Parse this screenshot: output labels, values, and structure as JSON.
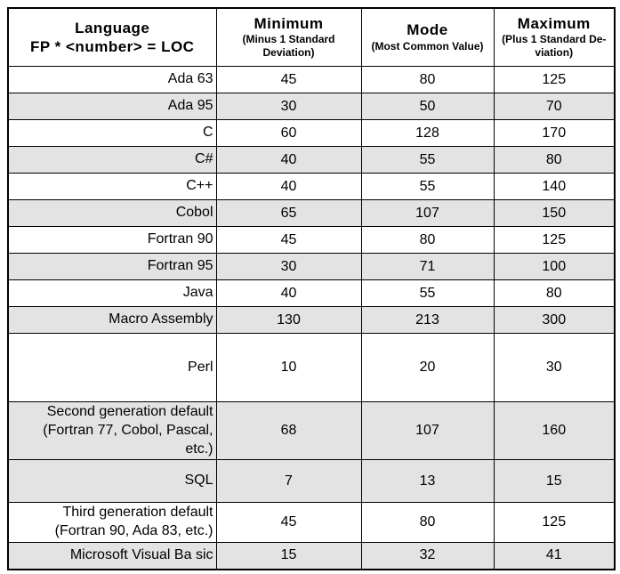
{
  "table": {
    "language_header": {
      "line1": "Language",
      "line2": "FP * <number> = LOC"
    },
    "columns": [
      {
        "title": "Minimum",
        "subtitle": "(Minus 1 Standard Deviation)"
      },
      {
        "title": "Mode",
        "subtitle": "(Most Common Value)"
      },
      {
        "title": "Maximum",
        "subtitle": "(Plus 1 Standard De-viation)"
      }
    ],
    "rows": [
      {
        "language": "Ada 63",
        "minimum": "45",
        "mode": "80",
        "maximum": "125",
        "shaded": false
      },
      {
        "language": "Ada 95",
        "minimum": "30",
        "mode": "50",
        "maximum": "70",
        "shaded": true
      },
      {
        "language": "C",
        "minimum": "60",
        "mode": "128",
        "maximum": "170",
        "shaded": false
      },
      {
        "language": "C#",
        "minimum": "40",
        "mode": "55",
        "maximum": "80",
        "shaded": true
      },
      {
        "language": "C++",
        "minimum": "40",
        "mode": "55",
        "maximum": "140",
        "shaded": false
      },
      {
        "language": "Cobol",
        "minimum": "65",
        "mode": "107",
        "maximum": "150",
        "shaded": true
      },
      {
        "language": "Fortran 90",
        "minimum": "45",
        "mode": "80",
        "maximum": "125",
        "shaded": false
      },
      {
        "language": "Fortran 95",
        "minimum": "30",
        "mode": "71",
        "maximum": "100",
        "shaded": true
      },
      {
        "language": "Java",
        "minimum": "40",
        "mode": "55",
        "maximum": "80",
        "shaded": false
      },
      {
        "language": "Macro Assembly",
        "minimum": "130",
        "mode": "213",
        "maximum": "300",
        "shaded": true
      },
      {
        "language": "Perl",
        "minimum": "10",
        "mode": "20",
        "maximum": "30",
        "shaded": false
      },
      {
        "language": "Second generation default (Fortran 77, Cobol, Pascal, etc.)",
        "minimum": "68",
        "mode": "107",
        "maximum": "160",
        "shaded": true
      },
      {
        "language": "SQL",
        "minimum": "7",
        "mode": "13",
        "maximum": "15",
        "shaded": true
      },
      {
        "language": "Third generation default (Fortran 90, Ada 83, etc.)",
        "minimum": "45",
        "mode": "80",
        "maximum": "125",
        "shaded": false
      },
      {
        "language": "Microsoft Visual Ba sic",
        "minimum": "15",
        "mode": "32",
        "maximum": "41",
        "shaded": true
      }
    ]
  },
  "colors": {
    "row_shaded": "#e3e3e3",
    "row_plain": "#ffffff",
    "border": "#000000",
    "page_background": "#ffffff"
  },
  "chart_data": {
    "type": "table",
    "title": "Language FP * <number> = LOC conversion",
    "columns": [
      "Language FP * <number> = LOC",
      "Minimum (Minus 1 Standard Deviation)",
      "Mode (Most Common Value)",
      "Maximum (Plus 1 Standard Deviation)"
    ],
    "rows": [
      [
        "Ada 63",
        45,
        80,
        125
      ],
      [
        "Ada 95",
        30,
        50,
        70
      ],
      [
        "C",
        60,
        128,
        170
      ],
      [
        "C#",
        40,
        55,
        80
      ],
      [
        "C++",
        40,
        55,
        140
      ],
      [
        "Cobol",
        65,
        107,
        150
      ],
      [
        "Fortran 90",
        45,
        80,
        125
      ],
      [
        "Fortran 95",
        30,
        71,
        100
      ],
      [
        "Java",
        40,
        55,
        80
      ],
      [
        "Macro Assembly",
        130,
        213,
        300
      ],
      [
        "Perl",
        10,
        20,
        30
      ],
      [
        "Second generation default (Fortran 77, Cobol, Pascal, etc.)",
        68,
        107,
        160
      ],
      [
        "SQL",
        7,
        13,
        15
      ],
      [
        "Third generation default (Fortran 90, Ada 83, etc.)",
        45,
        80,
        125
      ],
      [
        "Microsoft Visual Ba sic",
        15,
        32,
        41
      ]
    ],
    "layout": {
      "grid": true,
      "shaded_rows": [
        2,
        4,
        6,
        8,
        10,
        12,
        13,
        15
      ]
    }
  }
}
